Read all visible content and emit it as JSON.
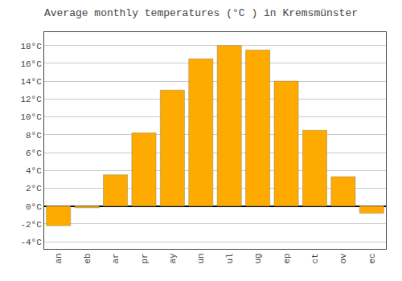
{
  "chart_data": {
    "type": "bar",
    "title": "Average monthly temperatures (°C ) in Kremsmünster",
    "categories": [
      "an",
      "eb",
      "ar",
      "pr",
      "ay",
      "un",
      "ul",
      "ug",
      "ep",
      "ct",
      "ov",
      "ec"
    ],
    "values": [
      -2.2,
      -0.2,
      3.5,
      8.2,
      13.0,
      16.5,
      18.0,
      17.5,
      14.0,
      8.5,
      3.3,
      -0.8
    ],
    "color": "#FFAA00",
    "ylim": [
      -4.8,
      19.5
    ],
    "yticks": [
      {
        "value": -4,
        "label": "-4°C"
      },
      {
        "value": -2,
        "label": "-2°C"
      },
      {
        "value": 0,
        "label": "0°C"
      },
      {
        "value": 2,
        "label": "2°C"
      },
      {
        "value": 4,
        "label": "4°C"
      },
      {
        "value": 6,
        "label": "6°C"
      },
      {
        "value": 8,
        "label": "8°C"
      },
      {
        "value": 10,
        "label": "10°C"
      },
      {
        "value": 12,
        "label": "12°C"
      },
      {
        "value": 14,
        "label": "14°C"
      },
      {
        "value": 16,
        "label": "16°C"
      },
      {
        "value": 18,
        "label": "18°C"
      }
    ],
    "grid": true
  }
}
